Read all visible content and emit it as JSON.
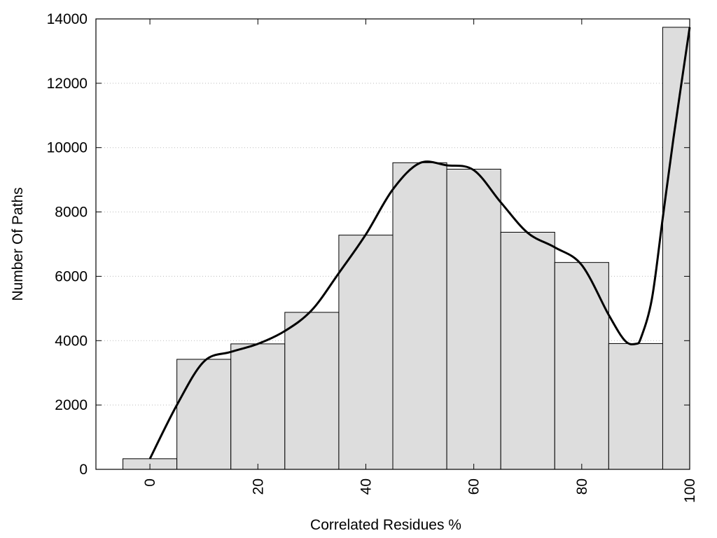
{
  "chart_data": {
    "type": "bar",
    "title": "",
    "xlabel": "Correlated Residues %",
    "ylabel": "Number Of Paths",
    "x": [
      0,
      10,
      20,
      30,
      40,
      50,
      60,
      70,
      80,
      90,
      100
    ],
    "values": [
      330,
      3420,
      3900,
      4880,
      7280,
      9530,
      9330,
      7370,
      6430,
      3910,
      13740
    ],
    "bin_width": 10,
    "xlim": [
      -10,
      100
    ],
    "ylim": [
      0,
      14000
    ],
    "xticks": [
      0,
      20,
      40,
      60,
      80,
      100
    ],
    "yticks": [
      0,
      2000,
      4000,
      6000,
      8000,
      10000,
      12000,
      14000
    ],
    "grid": "horizontal dotted",
    "bar_color": "#dddddd",
    "line_color": "#000000",
    "curve": [
      [
        0,
        330
      ],
      [
        5,
        2000
      ],
      [
        10,
        3350
      ],
      [
        15,
        3650
      ],
      [
        20,
        3900
      ],
      [
        25,
        4300
      ],
      [
        30,
        4950
      ],
      [
        35,
        6100
      ],
      [
        40,
        7300
      ],
      [
        45,
        8700
      ],
      [
        50,
        9520
      ],
      [
        55,
        9450
      ],
      [
        60,
        9300
      ],
      [
        65,
        8300
      ],
      [
        70,
        7350
      ],
      [
        75,
        6900
      ],
      [
        80,
        6350
      ],
      [
        85,
        4800
      ],
      [
        88,
        4000
      ],
      [
        90,
        3900
      ],
      [
        91,
        4100
      ],
      [
        93,
        5300
      ],
      [
        95,
        7800
      ],
      [
        97,
        10300
      ],
      [
        100,
        13740
      ]
    ]
  }
}
